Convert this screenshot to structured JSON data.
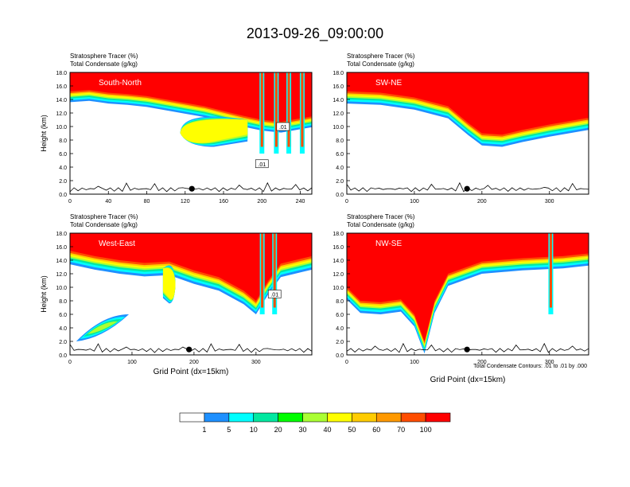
{
  "title": "2013-09-26_09:00:00",
  "colors": {
    "levels": [
      "#ffffff",
      "#1e90ff",
      "#00ffff",
      "#00e8a0",
      "#00ff00",
      "#aaff33",
      "#ffff00",
      "#ffcc00",
      "#ff9900",
      "#ff4d00",
      "#ff0000"
    ],
    "contour": "#000000",
    "marker": "#000000"
  },
  "colorbar": {
    "labels": [
      "1",
      "5",
      "10",
      "20",
      "30",
      "40",
      "50",
      "60",
      "70",
      "100"
    ]
  },
  "contour_note": "Total Condensate Contours: .01 to .01 by .000",
  "chart_data": [
    {
      "type": "heatmap",
      "name": "South-North",
      "left_labels": [
        "Stratosphere Tracer   (%)",
        "Total Condensate   (g/kg)"
      ],
      "ylabel": "Height (km)",
      "xlabel": "",
      "xlim": [
        0,
        252
      ],
      "ylim": [
        0,
        18
      ],
      "xticks": [
        0,
        40,
        80,
        120,
        160,
        200,
        240
      ],
      "yticks": [
        "0.0",
        "2.0",
        "4.0",
        "6.0",
        "8.0",
        "10.0",
        "12.0",
        "14.0",
        "16.0",
        "18.0"
      ],
      "marker_x": 127,
      "contour_label": ".01",
      "contour_label_points": [
        [
          222,
          10.0
        ],
        [
          200,
          4.5
        ]
      ],
      "tropopause": [
        [
          0,
          15.2
        ],
        [
          20,
          15.4
        ],
        [
          40,
          15.0
        ],
        [
          60,
          14.8
        ],
        [
          80,
          14.5
        ],
        [
          100,
          14.0
        ],
        [
          120,
          13.5
        ],
        [
          140,
          13.0
        ],
        [
          160,
          12.3
        ],
        [
          180,
          11.6
        ],
        [
          200,
          11.0
        ],
        [
          220,
          10.7
        ],
        [
          240,
          11.2
        ],
        [
          252,
          11.5
        ]
      ],
      "band_width": 1.6,
      "intrusion": {
        "base_x": 185,
        "tip_x": 115,
        "top": 11.0,
        "bottom": 7.0,
        "width": 1.5
      },
      "columns": [
        200,
        215,
        228,
        242
      ]
    },
    {
      "type": "heatmap",
      "name": "SW-NE",
      "left_labels": [
        "Stratosphere Tracer   (%)",
        "Total Condensate   (g/kg)"
      ],
      "ylabel": "",
      "xlabel": "",
      "xlim": [
        0,
        358
      ],
      "ylim": [
        0,
        18
      ],
      "xticks": [
        0,
        100,
        200,
        300
      ],
      "yticks": [
        "0.0",
        "2.0",
        "4.0",
        "6.0",
        "8.0",
        "10.0",
        "12.0",
        "14.0",
        "16.0",
        "18.0"
      ],
      "marker_x": 178,
      "contour_label": "",
      "contour_label_points": [],
      "tropopause": [
        [
          0,
          15.2
        ],
        [
          50,
          15.0
        ],
        [
          100,
          14.3
        ],
        [
          150,
          13.0
        ],
        [
          180,
          10.5
        ],
        [
          200,
          9.0
        ],
        [
          230,
          8.8
        ],
        [
          260,
          9.5
        ],
        [
          300,
          10.3
        ],
        [
          358,
          11.3
        ]
      ],
      "band_width": 1.8,
      "intrusion": null,
      "columns": []
    },
    {
      "type": "heatmap",
      "name": "West-East",
      "left_labels": [
        "Stratosphere Tracer   (%)",
        "Total Condensate   (g/kg)"
      ],
      "ylabel": "Height (km)",
      "xlabel": "Grid Point (dx=15km)",
      "xlim": [
        0,
        390
      ],
      "ylim": [
        0,
        18
      ],
      "xticks": [
        0,
        100,
        200,
        300
      ],
      "yticks": [
        "0.0",
        "2.0",
        "4.0",
        "6.0",
        "8.0",
        "10.0",
        "12.0",
        "14.0",
        "16.0",
        "18.0"
      ],
      "marker_x": 192,
      "contour_label": ".01",
      "contour_label_points": [
        [
          330,
          9.0
        ]
      ],
      "tropopause": [
        [
          0,
          15.4
        ],
        [
          40,
          14.6
        ],
        [
          80,
          14.0
        ],
        [
          120,
          13.6
        ],
        [
          160,
          13.8
        ],
        [
          200,
          12.5
        ],
        [
          240,
          11.5
        ],
        [
          280,
          9.5
        ],
        [
          300,
          8.0
        ],
        [
          320,
          11.0
        ],
        [
          340,
          13.5
        ],
        [
          390,
          14.6
        ]
      ],
      "band_width": 2.0,
      "intrusion": {
        "base_x": 150,
        "tip_x": 170,
        "top": 12.8,
        "bottom": 7.6,
        "width": 1.6
      },
      "low_blob": {
        "x1": 10,
        "x2": 95,
        "y1": 2.0,
        "y2": 6.0
      },
      "columns": [
        310,
        330
      ]
    },
    {
      "type": "heatmap",
      "name": "NW-SE",
      "left_labels": [
        "Stratosphere Tracer   (%)",
        "Total Condensate   (g/kg)"
      ],
      "ylabel": "",
      "xlabel": "Grid Point (dx=15km)",
      "xlim": [
        0,
        358
      ],
      "ylim": [
        0,
        18
      ],
      "xticks": [
        0,
        100,
        200,
        300
      ],
      "yticks": [
        "0.0",
        "2.0",
        "4.0",
        "6.0",
        "8.0",
        "10.0",
        "12.0",
        "14.0",
        "16.0",
        "18.0"
      ],
      "marker_x": 178,
      "contour_label": "",
      "contour_label_points": [],
      "tropopause": [
        [
          0,
          10.0
        ],
        [
          20,
          8.0
        ],
        [
          50,
          7.8
        ],
        [
          80,
          8.2
        ],
        [
          100,
          6.0
        ],
        [
          115,
          2.0
        ],
        [
          130,
          8.0
        ],
        [
          150,
          12.0
        ],
        [
          200,
          13.8
        ],
        [
          260,
          14.3
        ],
        [
          320,
          14.6
        ],
        [
          358,
          15.0
        ]
      ],
      "band_width": 1.8,
      "intrusion": null,
      "columns": [
        302
      ]
    }
  ]
}
